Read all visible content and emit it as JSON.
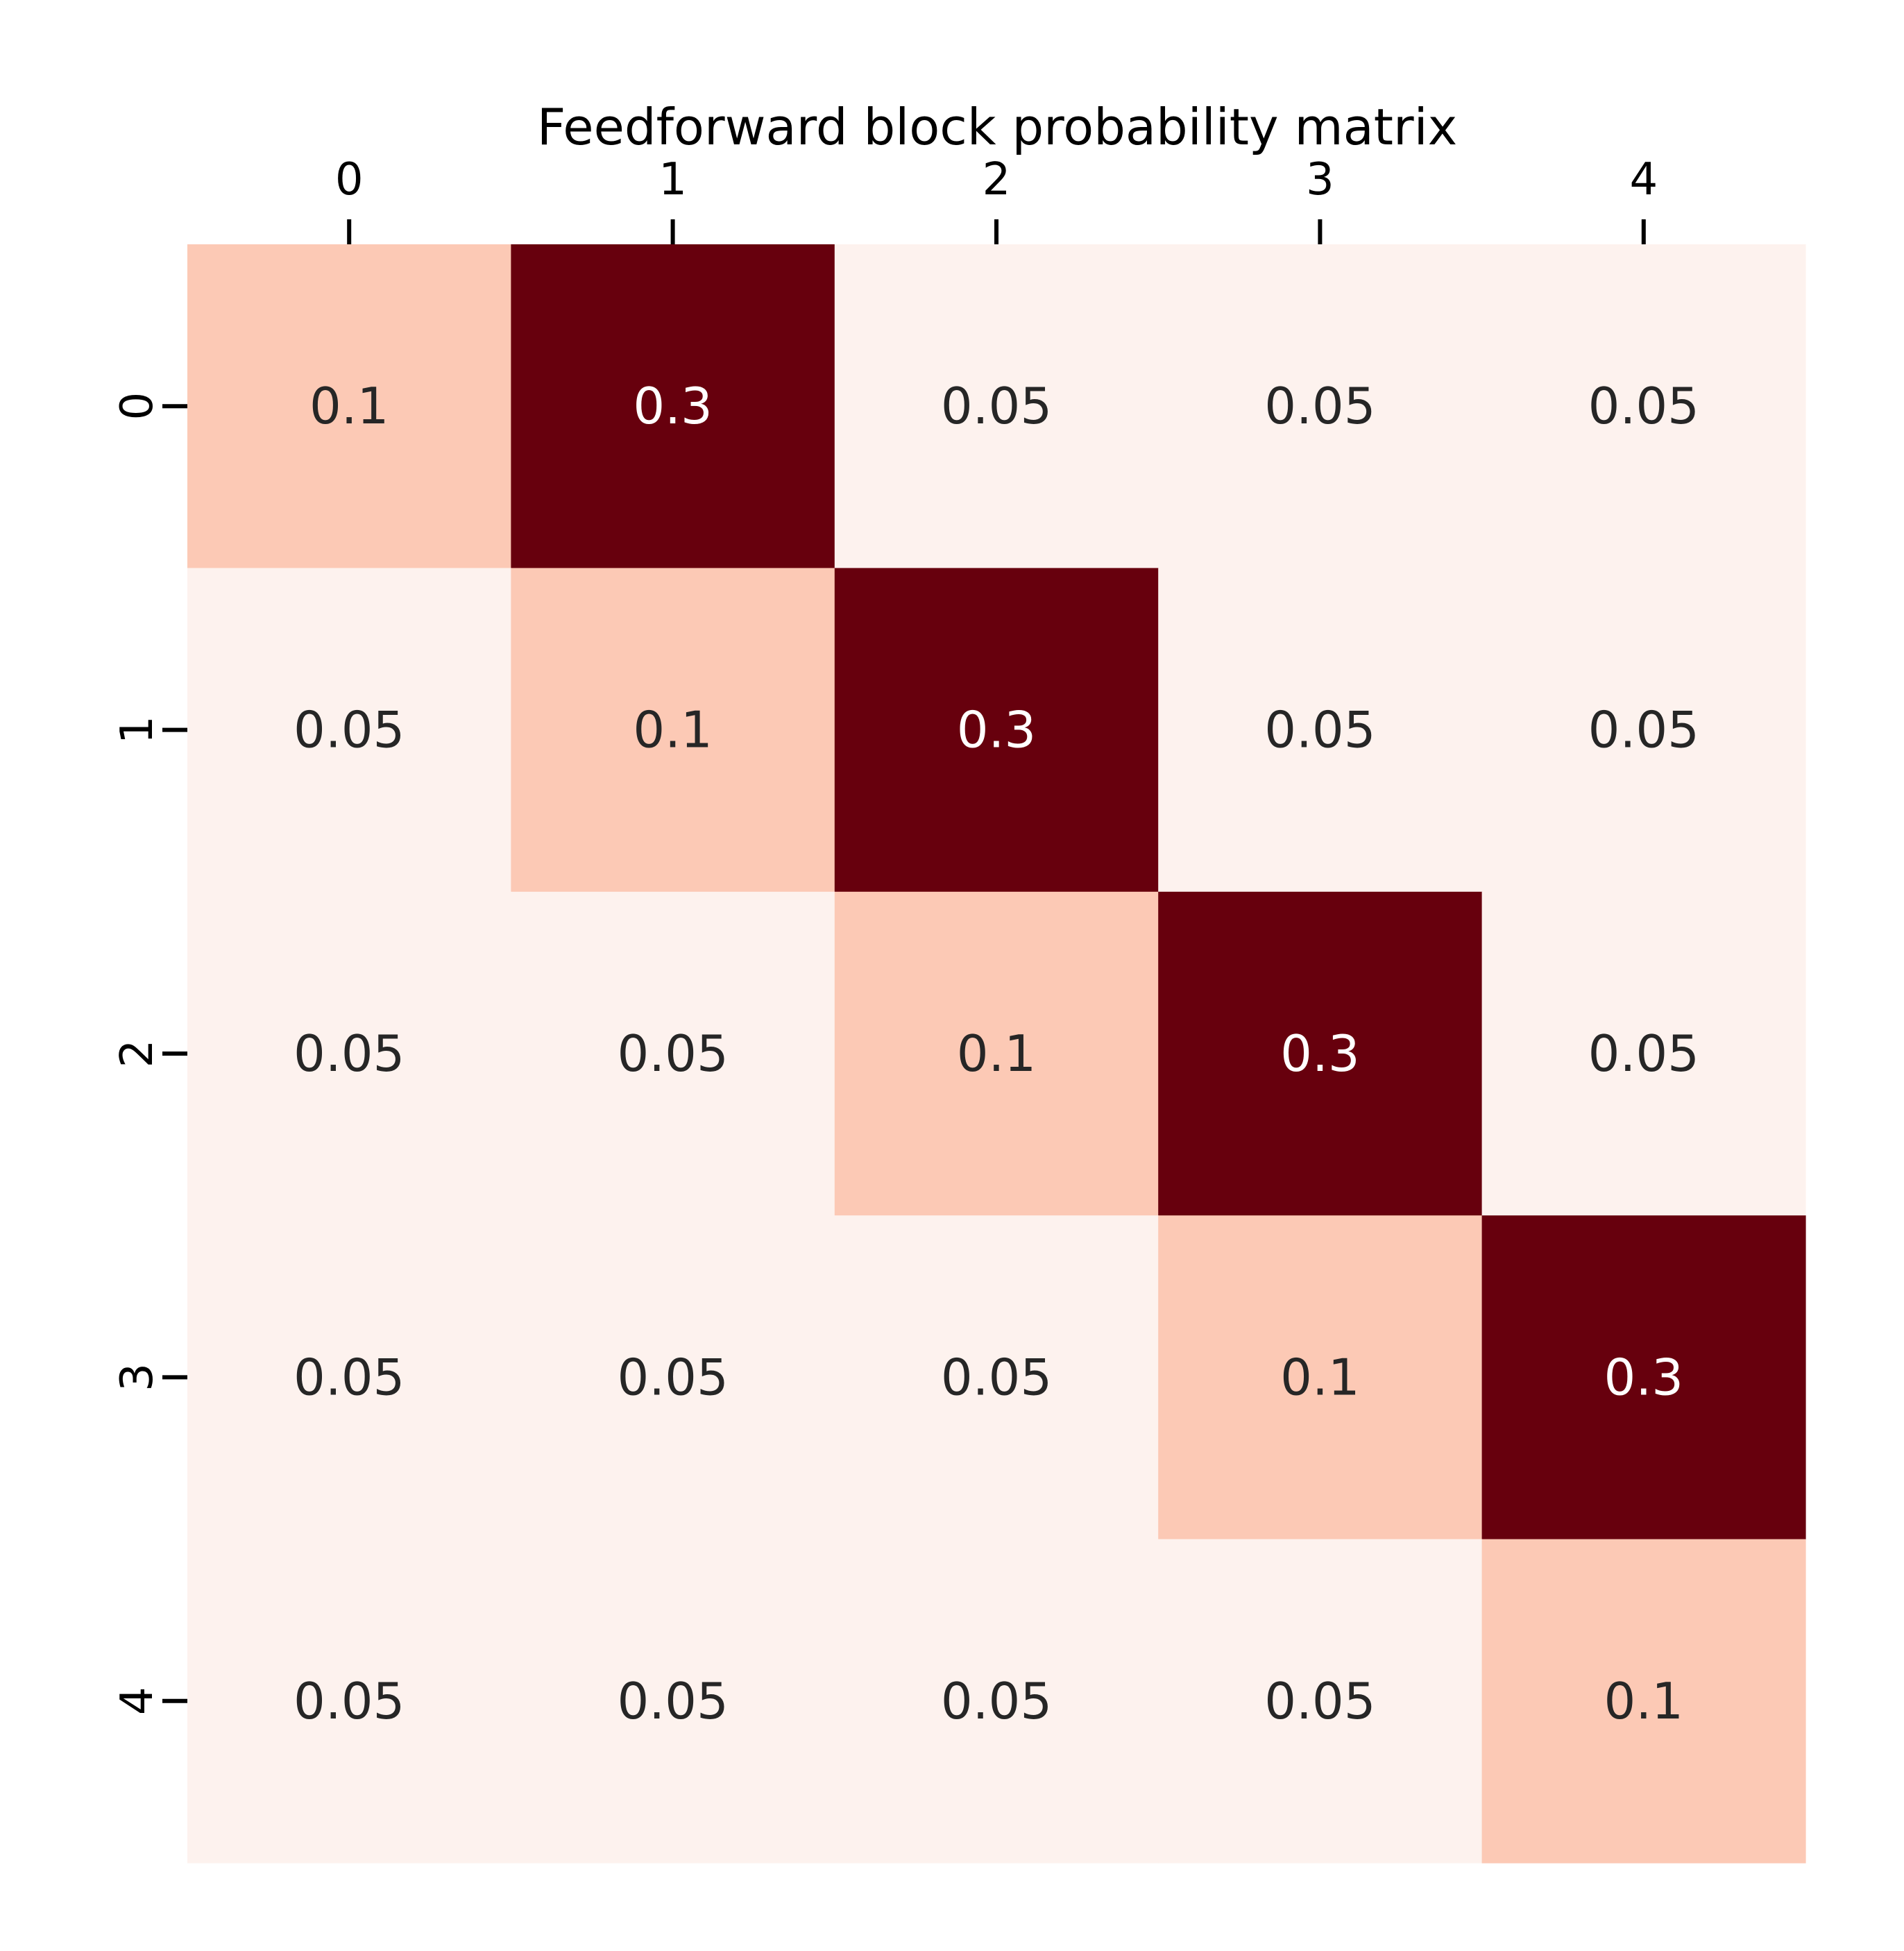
{
  "chart_data": {
    "type": "heatmap",
    "title": "Feedforward block probability matrix",
    "x_tick_labels": [
      "0",
      "1",
      "2",
      "3",
      "4"
    ],
    "y_tick_labels": [
      "0",
      "1",
      "2",
      "3",
      "4"
    ],
    "x_axis_position": "top",
    "colormap": "Reds",
    "colorbar": false,
    "grid": false,
    "values": [
      [
        0.1,
        0.3,
        0.05,
        0.05,
        0.05
      ],
      [
        0.05,
        0.1,
        0.3,
        0.05,
        0.05
      ],
      [
        0.05,
        0.05,
        0.1,
        0.3,
        0.05
      ],
      [
        0.05,
        0.05,
        0.05,
        0.1,
        0.3
      ],
      [
        0.05,
        0.05,
        0.05,
        0.05,
        0.1
      ]
    ],
    "value_labels": [
      [
        "0.1",
        "0.3",
        "0.05",
        "0.05",
        "0.05"
      ],
      [
        "0.05",
        "0.1",
        "0.3",
        "0.05",
        "0.05"
      ],
      [
        "0.05",
        "0.05",
        "0.1",
        "0.3",
        "0.05"
      ],
      [
        "0.05",
        "0.05",
        "0.05",
        "0.1",
        "0.3"
      ],
      [
        "0.05",
        "0.05",
        "0.05",
        "0.05",
        "0.1"
      ]
    ],
    "color_scale": [
      {
        "value": 0.05,
        "color": "#fdf2ee",
        "text_color": "#262626"
      },
      {
        "value": 0.1,
        "color": "#fcc9b5",
        "text_color": "#262626"
      },
      {
        "value": 0.3,
        "color": "#67000d",
        "text_color": "#ffffff"
      }
    ]
  }
}
